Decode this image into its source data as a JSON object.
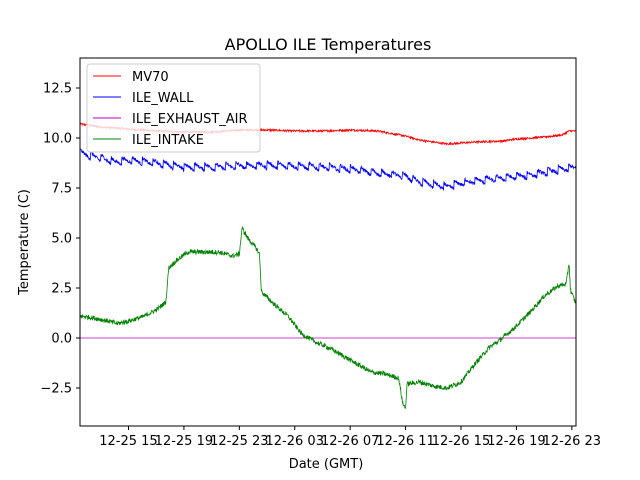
{
  "chart_data": {
    "type": "line",
    "title": "APOLLO ILE Temperatures",
    "xlabel": "Date (GMT)",
    "ylabel": "Temperature (C)",
    "xlim": [
      11.5,
      47.3
    ],
    "ylim": [
      -4.4,
      14.0
    ],
    "x_unit": "hours since 12-25 00:00 GMT",
    "x_ticks": [
      {
        "value": 15,
        "label": "12-25 15"
      },
      {
        "value": 19,
        "label": "12-25 19"
      },
      {
        "value": 23,
        "label": "12-25 23"
      },
      {
        "value": 27,
        "label": "12-26 03"
      },
      {
        "value": 31,
        "label": "12-26 07"
      },
      {
        "value": 35,
        "label": "12-26 11"
      },
      {
        "value": 39,
        "label": "12-26 15"
      },
      {
        "value": 43,
        "label": "12-26 19"
      },
      {
        "value": 47,
        "label": "12-26 23"
      }
    ],
    "y_ticks": [
      {
        "value": -2.5,
        "label": "−2.5"
      },
      {
        "value": 0.0,
        "label": "0.0"
      },
      {
        "value": 2.5,
        "label": "2.5"
      },
      {
        "value": 5.0,
        "label": "5.0"
      },
      {
        "value": 7.5,
        "label": "7.5"
      },
      {
        "value": 10.0,
        "label": "10.0"
      },
      {
        "value": 12.5,
        "label": "12.5"
      }
    ],
    "legend_position": "top-left",
    "grid": false,
    "series": [
      {
        "name": "MV70",
        "color": "#ff0000",
        "noise": 0.05,
        "points": [
          [
            11.5,
            10.7
          ],
          [
            13,
            10.55
          ],
          [
            15,
            10.45
          ],
          [
            17,
            10.35
          ],
          [
            19,
            10.3
          ],
          [
            21,
            10.3
          ],
          [
            23,
            10.4
          ],
          [
            25,
            10.4
          ],
          [
            27,
            10.35
          ],
          [
            29,
            10.35
          ],
          [
            31,
            10.4
          ],
          [
            33,
            10.35
          ],
          [
            35,
            10.1
          ],
          [
            36,
            9.9
          ],
          [
            38,
            9.7
          ],
          [
            40,
            9.8
          ],
          [
            42,
            9.85
          ],
          [
            43,
            9.95
          ],
          [
            45,
            10.05
          ],
          [
            46.3,
            10.15
          ],
          [
            46.8,
            10.35
          ],
          [
            47.3,
            10.35
          ]
        ]
      },
      {
        "name": "ILE_WALL",
        "color": "#0000ff",
        "noise": 0.08,
        "sawtooth": 0.35,
        "points": [
          [
            11.5,
            9.25
          ],
          [
            13,
            9.0
          ],
          [
            14,
            8.8
          ],
          [
            15,
            8.9
          ],
          [
            17,
            8.75
          ],
          [
            19,
            8.55
          ],
          [
            21,
            8.55
          ],
          [
            23,
            8.6
          ],
          [
            25,
            8.65
          ],
          [
            27,
            8.6
          ],
          [
            29,
            8.55
          ],
          [
            31,
            8.45
          ],
          [
            33,
            8.25
          ],
          [
            35,
            8.1
          ],
          [
            36,
            7.8
          ],
          [
            38,
            7.55
          ],
          [
            39,
            7.75
          ],
          [
            40,
            7.85
          ],
          [
            42,
            8.0
          ],
          [
            44,
            8.15
          ],
          [
            46,
            8.4
          ],
          [
            47.3,
            8.55
          ]
        ]
      },
      {
        "name": "ILE_EXHAUST_AIR",
        "color": "#bf00bf",
        "noise": 0,
        "points": [
          [
            11.5,
            0.0
          ],
          [
            47.3,
            0.0
          ]
        ]
      },
      {
        "name": "ILE_INTAKE",
        "color": "#008000",
        "noise": 0.12,
        "points": [
          [
            11.5,
            1.1
          ],
          [
            12.5,
            1.0
          ],
          [
            13.5,
            0.85
          ],
          [
            14.2,
            0.72
          ],
          [
            15,
            0.85
          ],
          [
            16,
            1.05
          ],
          [
            17,
            1.4
          ],
          [
            17.7,
            1.8
          ],
          [
            17.9,
            3.5
          ],
          [
            18.5,
            3.9
          ],
          [
            19.3,
            4.3
          ],
          [
            20.5,
            4.3
          ],
          [
            21.5,
            4.3
          ],
          [
            22.5,
            4.1
          ],
          [
            23,
            4.2
          ],
          [
            23.2,
            5.5
          ],
          [
            23.6,
            5.0
          ],
          [
            24.2,
            4.5
          ],
          [
            24.45,
            4.2
          ],
          [
            24.6,
            2.3
          ],
          [
            25.5,
            1.7
          ],
          [
            26.5,
            1.1
          ],
          [
            27.5,
            0.2
          ],
          [
            28.5,
            -0.2
          ],
          [
            29.5,
            -0.5
          ],
          [
            30.5,
            -0.9
          ],
          [
            31.5,
            -1.3
          ],
          [
            32.5,
            -1.7
          ],
          [
            33.5,
            -1.8
          ],
          [
            34.5,
            -2.0
          ],
          [
            34.8,
            -3.3
          ],
          [
            35.0,
            -3.5
          ],
          [
            35.1,
            -2.3
          ],
          [
            36,
            -2.2
          ],
          [
            37,
            -2.4
          ],
          [
            38,
            -2.5
          ],
          [
            39,
            -2.2
          ],
          [
            40,
            -1.3
          ],
          [
            41,
            -0.5
          ],
          [
            42,
            0.0
          ],
          [
            42.5,
            0.3
          ],
          [
            43,
            0.6
          ],
          [
            44,
            1.3
          ],
          [
            45,
            2.1
          ],
          [
            46,
            2.6
          ],
          [
            46.6,
            2.7
          ],
          [
            46.8,
            3.8
          ],
          [
            46.9,
            2.4
          ],
          [
            47.3,
            1.7
          ]
        ]
      }
    ]
  }
}
